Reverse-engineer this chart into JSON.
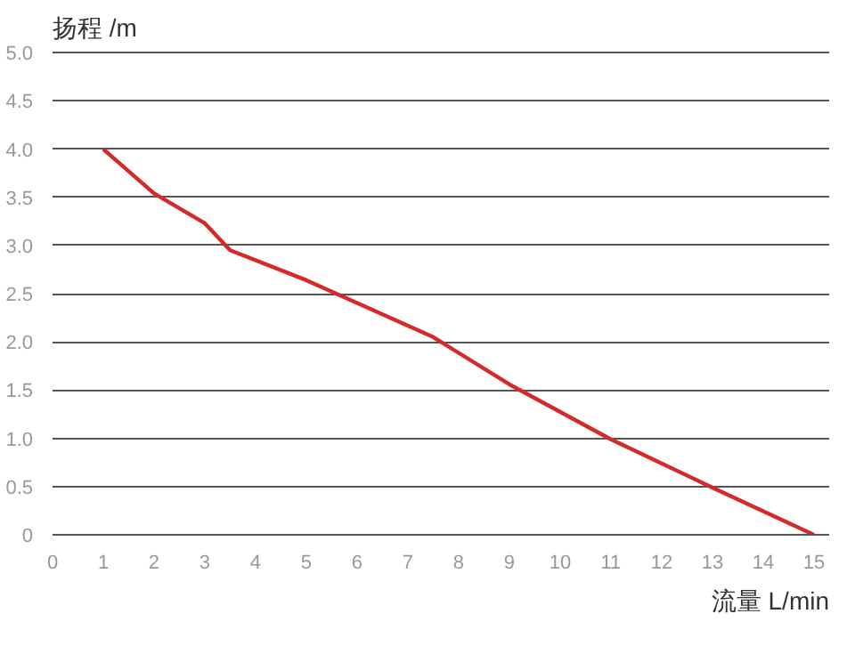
{
  "chart_data": {
    "type": "line",
    "xlabel": "流量 L/min",
    "ylabel": "扬程 /m",
    "x": [
      1,
      2,
      3,
      3.5,
      5,
      7.5,
      9,
      11,
      13,
      15
    ],
    "series": [
      {
        "color": "#d42a2a",
        "values": [
          4.0,
          3.54,
          3.23,
          2.95,
          2.64,
          2.05,
          1.56,
          0.99,
          0.49,
          0
        ]
      }
    ],
    "xlim": [
      0,
      15.3
    ],
    "xticks": [
      0,
      1,
      2,
      3,
      4,
      5,
      6,
      7,
      8,
      9,
      10,
      11,
      12,
      13,
      14,
      15
    ],
    "ylim": [
      0,
      5.02
    ],
    "yticks": [
      {
        "value": 0,
        "label": "0"
      },
      {
        "value": 0.5,
        "label": "0.5"
      },
      {
        "value": 1,
        "label": "1.0"
      },
      {
        "value": 1.5,
        "label": "1.5"
      },
      {
        "value": 2,
        "label": "2.0"
      },
      {
        "value": 2.5,
        "label": "2.5"
      },
      {
        "value": 3,
        "label": "3.0"
      },
      {
        "value": 3.5,
        "label": "3.5"
      },
      {
        "value": 4,
        "label": "4.0"
      },
      {
        "value": 4.5,
        "label": "4.5"
      },
      {
        "value": 5,
        "label": "5.0"
      }
    ],
    "grid": "y",
    "marker": "none",
    "line_style": "solid"
  }
}
